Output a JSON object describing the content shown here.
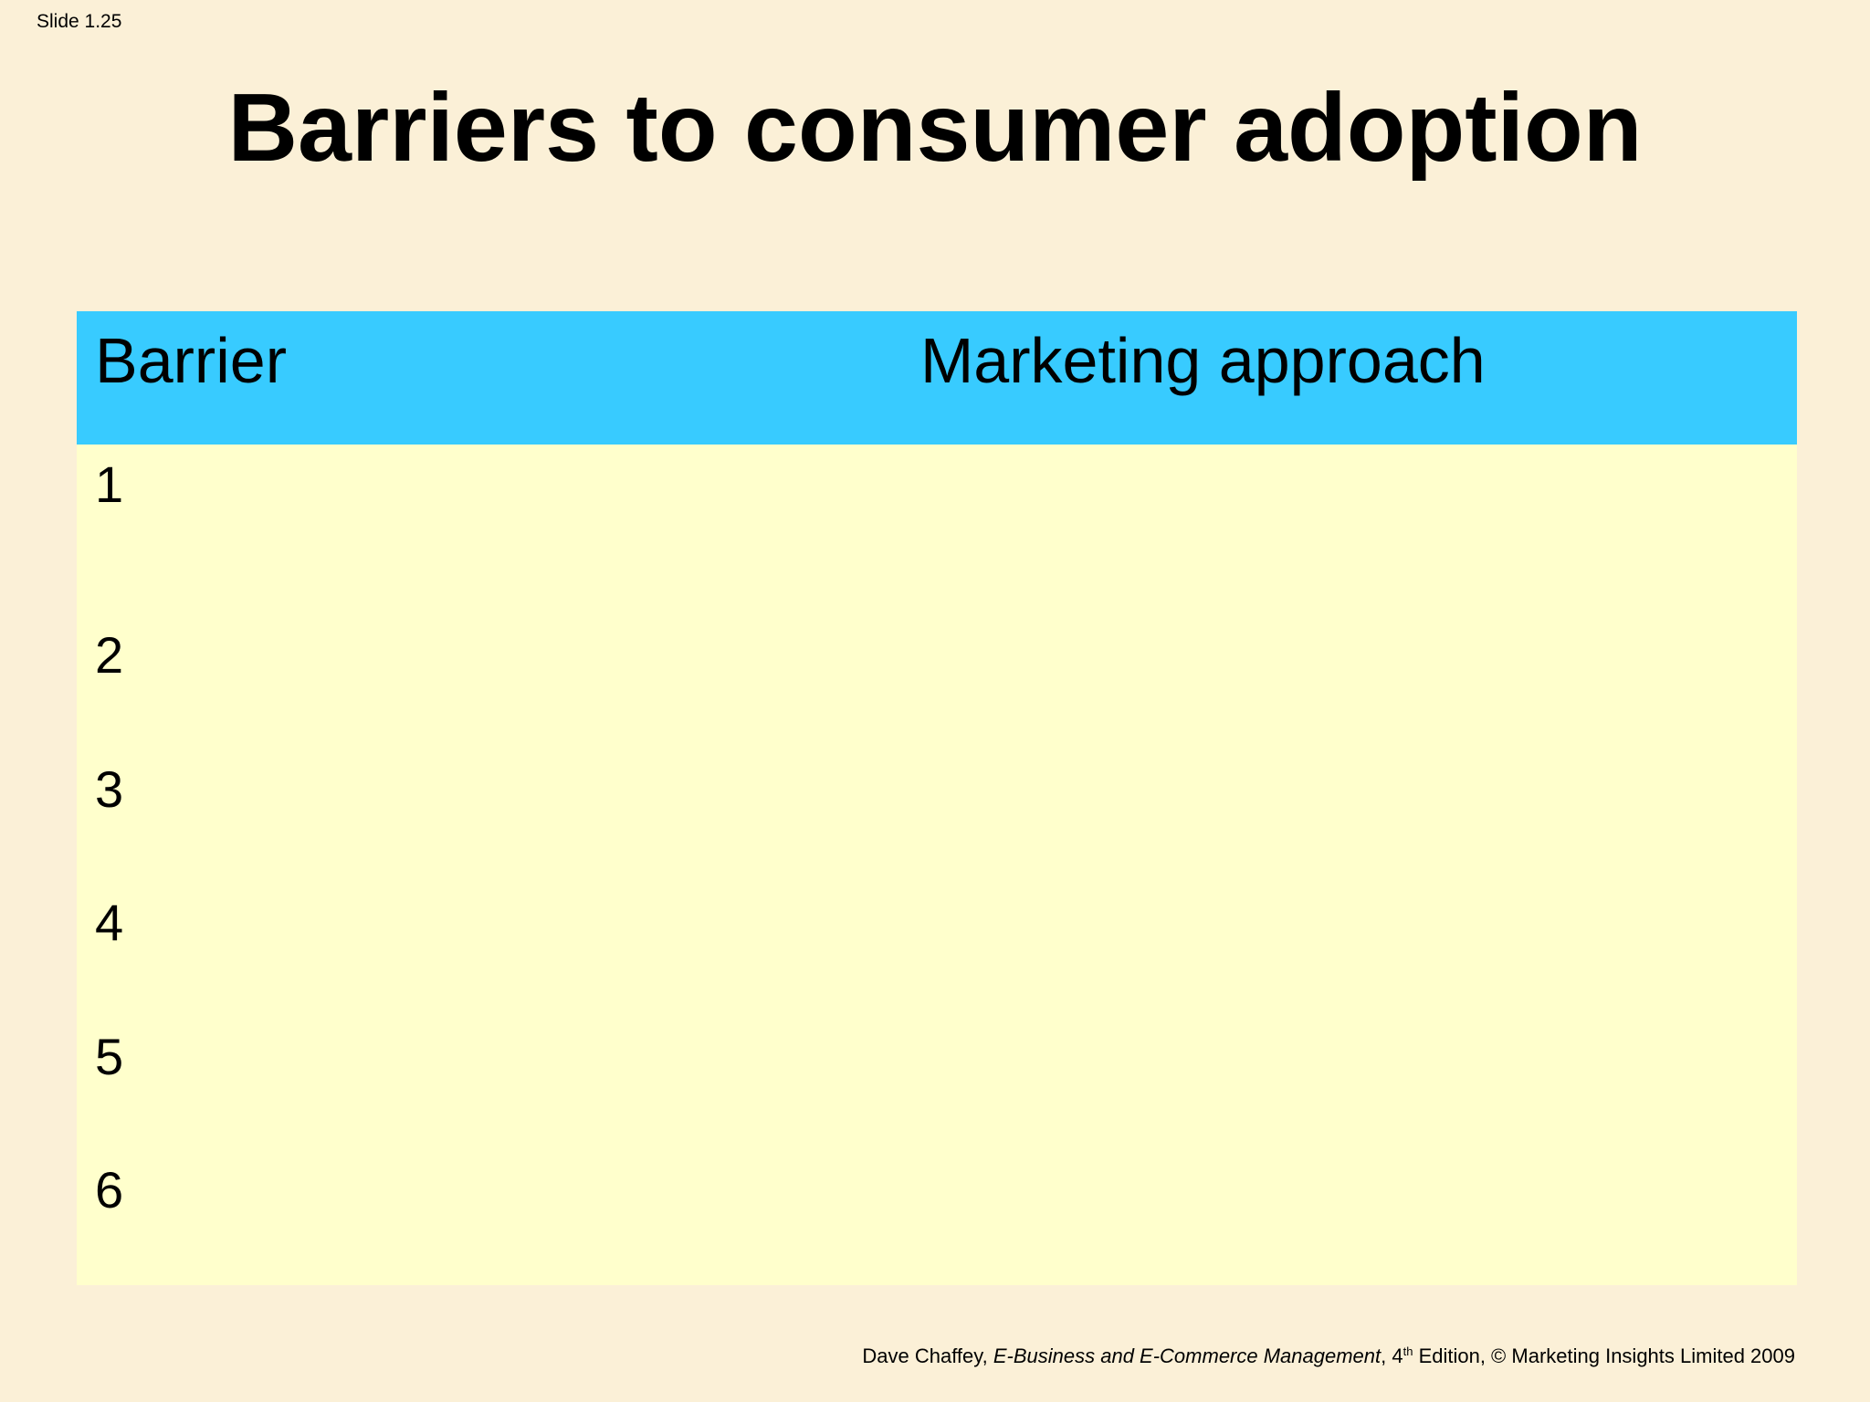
{
  "slide_label": "Slide 1.25",
  "title": "Barriers to consumer adoption",
  "table": {
    "headers": {
      "barrier": "Barrier",
      "approach": "Marketing approach"
    },
    "rows": [
      {
        "number": "1"
      },
      {
        "number": "2"
      },
      {
        "number": "3"
      },
      {
        "number": "4"
      },
      {
        "number": "5"
      },
      {
        "number": "6"
      }
    ]
  },
  "footer": {
    "author": "Dave Chaffey, ",
    "book_title": "E-Business and E-Commerce Management",
    "edition_prefix": ", 4",
    "edition_sup": "th",
    "edition_rest": " Edition, © Marketing Insights Limited 2009"
  },
  "colors": {
    "background": "#FBF0D7",
    "header_fill": "#38CBFF",
    "table_fill": "#FFFFCC"
  }
}
